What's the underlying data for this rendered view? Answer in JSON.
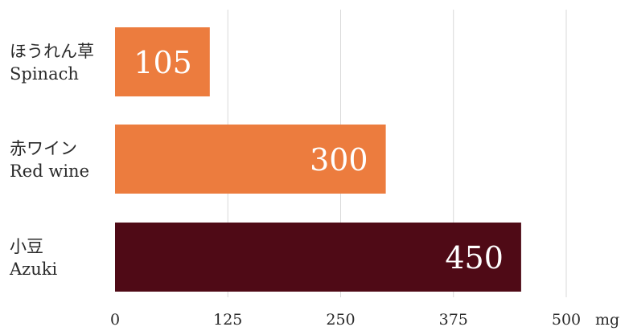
{
  "chart_data": {
    "type": "bar",
    "orientation": "horizontal",
    "categories": [
      {
        "ja": "ほうれん草",
        "en": "Spinach"
      },
      {
        "ja": "赤ワイン",
        "en": "Red wine"
      },
      {
        "ja": "小豆",
        "en": "Azuki"
      }
    ],
    "values": [
      105,
      300,
      450
    ],
    "bar_colors": [
      "#ec7c3e",
      "#ec7c3e",
      "#4f0a16"
    ],
    "xlim": [
      0,
      500
    ],
    "xticks": [
      0,
      125,
      250,
      375,
      500
    ],
    "xunit": "mg",
    "grid": true
  }
}
